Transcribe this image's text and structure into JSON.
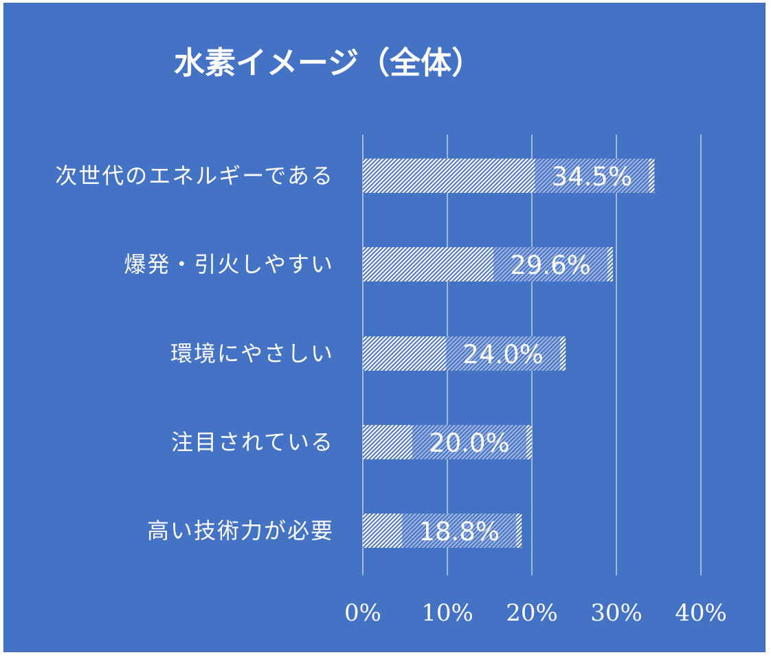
{
  "chart_data": {
    "type": "bar",
    "orientation": "horizontal",
    "title": "水素イメージ（全体）",
    "categories": [
      "次世代のエネルギーである",
      "爆発・引火しやすい",
      "環境にやさしい",
      "注目されている",
      "高い技術力が必要"
    ],
    "values": [
      34.5,
      29.6,
      24.0,
      20.0,
      18.8
    ],
    "data_labels": [
      "34.5%",
      "29.6%",
      "24.0%",
      "20.0%",
      "18.8%"
    ],
    "xlim": [
      0,
      40
    ],
    "x_ticks": [
      0,
      10,
      20,
      30,
      40
    ],
    "x_tick_labels": [
      "0%",
      "10%",
      "20%",
      "30%",
      "40%"
    ],
    "grid": "vertical",
    "legend": "none",
    "colors": {
      "background": "#4472c4",
      "bar_pattern": "#ffffff",
      "text": "#ffffff",
      "gridline": "#a4b9e2"
    }
  }
}
